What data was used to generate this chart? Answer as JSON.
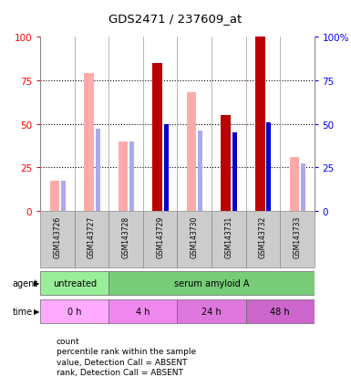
{
  "title": "GDS2471 / 237609_at",
  "samples": [
    "GSM143726",
    "GSM143727",
    "GSM143728",
    "GSM143729",
    "GSM143730",
    "GSM143731",
    "GSM143732",
    "GSM143733"
  ],
  "count_values": [
    0,
    0,
    0,
    85,
    0,
    55,
    100,
    0
  ],
  "rank_values": [
    17,
    47,
    40,
    50,
    46,
    45,
    51,
    27
  ],
  "value_absent": [
    17,
    79,
    40,
    0,
    68,
    0,
    0,
    31
  ],
  "rank_absent": [
    17,
    47,
    40,
    0,
    46,
    0,
    0,
    27
  ],
  "has_present": [
    false,
    false,
    false,
    true,
    false,
    true,
    true,
    false
  ],
  "color_count": "#bb0000",
  "color_rank_present": "#0000cc",
  "color_value_absent": "#ffaaaa",
  "color_rank_absent": "#aaaaee",
  "color_agent_untreated": "#99ee99",
  "color_agent_treated": "#77cc77",
  "color_time_0h": "#ffaaff",
  "color_time_4h": "#ee88ee",
  "color_time_24h": "#dd77dd",
  "color_time_48h": "#cc66cc",
  "color_gray": "#cccccc",
  "ylim": [
    0,
    100
  ]
}
